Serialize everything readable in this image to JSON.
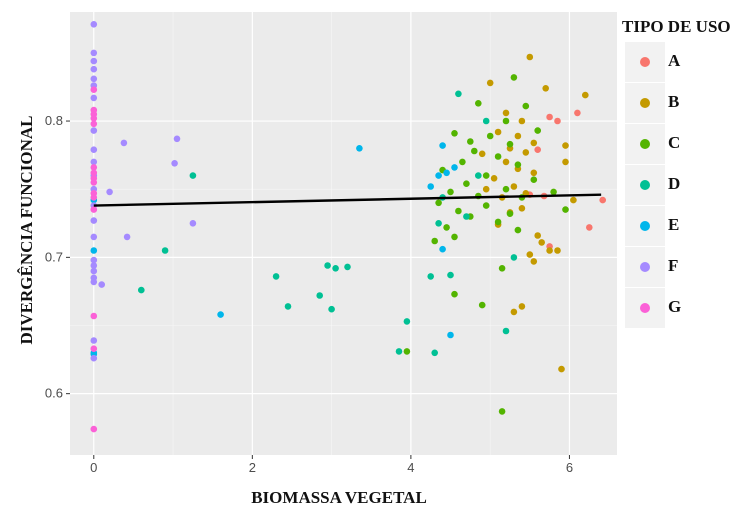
{
  "chart_data": {
    "type": "scatter",
    "xlabel": "BIOMASSA VEGETAL",
    "ylabel": "DIVERGÊNCIA FUNCIONAL",
    "xlim": [
      -0.3,
      6.6
    ],
    "ylim": [
      0.555,
      0.88
    ],
    "x_ticks": [
      0,
      2,
      4,
      6
    ],
    "x_tick_labels": [
      "0",
      "2",
      "4",
      "6"
    ],
    "y_ticks": [
      0.6,
      0.7,
      0.8
    ],
    "y_tick_labels": [
      "0.6",
      "0.7",
      "0.8"
    ],
    "grid": true,
    "background": "#ebebeb",
    "legend": {
      "title": "TIPO DE USO",
      "position": "right",
      "entries": [
        {
          "label": "A",
          "color": "#f8766d"
        },
        {
          "label": "B",
          "color": "#c49a00"
        },
        {
          "label": "C",
          "color": "#53b400"
        },
        {
          "label": "D",
          "color": "#00c094"
        },
        {
          "label": "E",
          "color": "#00b6eb"
        },
        {
          "label": "F",
          "color": "#a58aff"
        },
        {
          "label": "G",
          "color": "#fb61d7"
        }
      ]
    },
    "trend_line": {
      "x": [
        0,
        6.4
      ],
      "y": [
        0.738,
        0.746
      ],
      "color": "#000000"
    },
    "series": [
      {
        "name": "A",
        "color": "#f8766d",
        "points": [
          [
            5.75,
            0.803
          ],
          [
            5.85,
            0.8
          ],
          [
            6.1,
            0.806
          ],
          [
            5.6,
            0.779
          ],
          [
            5.5,
            0.746
          ],
          [
            5.68,
            0.745
          ],
          [
            6.25,
            0.722
          ],
          [
            6.42,
            0.742
          ],
          [
            5.75,
            0.708
          ]
        ]
      },
      {
        "name": "B",
        "color": "#c49a00",
        "points": [
          [
            5.5,
            0.847
          ],
          [
            5.0,
            0.828
          ],
          [
            5.7,
            0.824
          ],
          [
            6.2,
            0.819
          ],
          [
            5.2,
            0.806
          ],
          [
            5.4,
            0.8
          ],
          [
            5.1,
            0.792
          ],
          [
            5.35,
            0.789
          ],
          [
            5.55,
            0.784
          ],
          [
            5.25,
            0.78
          ],
          [
            5.95,
            0.782
          ],
          [
            5.45,
            0.777
          ],
          [
            5.2,
            0.77
          ],
          [
            4.9,
            0.776
          ],
          [
            5.35,
            0.765
          ],
          [
            5.55,
            0.762
          ],
          [
            5.05,
            0.758
          ],
          [
            5.95,
            0.77
          ],
          [
            5.3,
            0.752
          ],
          [
            5.45,
            0.747
          ],
          [
            5.15,
            0.744
          ],
          [
            4.95,
            0.75
          ],
          [
            5.4,
            0.736
          ],
          [
            5.25,
            0.733
          ],
          [
            5.1,
            0.724
          ],
          [
            6.05,
            0.742
          ],
          [
            5.6,
            0.716
          ],
          [
            5.65,
            0.711
          ],
          [
            5.5,
            0.702
          ],
          [
            5.55,
            0.697
          ],
          [
            5.75,
            0.705
          ],
          [
            5.85,
            0.705
          ],
          [
            5.3,
            0.66
          ],
          [
            5.4,
            0.664
          ],
          [
            5.9,
            0.618
          ]
        ]
      },
      {
        "name": "C",
        "color": "#53b400",
        "points": [
          [
            5.3,
            0.832
          ],
          [
            4.85,
            0.813
          ],
          [
            5.45,
            0.811
          ],
          [
            5.2,
            0.8
          ],
          [
            4.55,
            0.791
          ],
          [
            5.0,
            0.789
          ],
          [
            5.6,
            0.793
          ],
          [
            4.75,
            0.785
          ],
          [
            5.25,
            0.783
          ],
          [
            4.8,
            0.778
          ],
          [
            5.1,
            0.774
          ],
          [
            4.65,
            0.77
          ],
          [
            5.35,
            0.768
          ],
          [
            4.4,
            0.764
          ],
          [
            4.95,
            0.76
          ],
          [
            5.55,
            0.757
          ],
          [
            4.7,
            0.754
          ],
          [
            5.2,
            0.75
          ],
          [
            4.5,
            0.748
          ],
          [
            4.85,
            0.745
          ],
          [
            5.4,
            0.744
          ],
          [
            4.35,
            0.74
          ],
          [
            4.95,
            0.738
          ],
          [
            4.6,
            0.734
          ],
          [
            5.25,
            0.732
          ],
          [
            4.75,
            0.73
          ],
          [
            5.1,
            0.726
          ],
          [
            4.45,
            0.722
          ],
          [
            5.35,
            0.72
          ],
          [
            4.55,
            0.715
          ],
          [
            4.3,
            0.712
          ],
          [
            5.8,
            0.748
          ],
          [
            5.95,
            0.735
          ],
          [
            5.15,
            0.692
          ],
          [
            4.55,
            0.673
          ],
          [
            4.9,
            0.665
          ],
          [
            3.95,
            0.631
          ],
          [
            5.15,
            0.587
          ]
        ]
      },
      {
        "name": "D",
        "color": "#00c094",
        "points": [
          [
            1.25,
            0.76
          ],
          [
            0.9,
            0.705
          ],
          [
            0.6,
            0.676
          ],
          [
            2.3,
            0.686
          ],
          [
            2.45,
            0.664
          ],
          [
            2.85,
            0.672
          ],
          [
            2.95,
            0.694
          ],
          [
            3.05,
            0.692
          ],
          [
            3.2,
            0.693
          ],
          [
            3.0,
            0.662
          ],
          [
            3.85,
            0.631
          ],
          [
            3.95,
            0.653
          ],
          [
            4.3,
            0.63
          ],
          [
            4.25,
            0.686
          ],
          [
            4.5,
            0.687
          ],
          [
            4.35,
            0.725
          ],
          [
            4.4,
            0.744
          ],
          [
            4.6,
            0.82
          ],
          [
            4.7,
            0.73
          ],
          [
            5.2,
            0.646
          ],
          [
            5.3,
            0.7
          ],
          [
            4.85,
            0.76
          ],
          [
            4.95,
            0.8
          ]
        ]
      },
      {
        "name": "E",
        "color": "#00b6eb",
        "points": [
          [
            3.35,
            0.78
          ],
          [
            1.6,
            0.658
          ],
          [
            4.4,
            0.706
          ],
          [
            4.35,
            0.76
          ],
          [
            4.45,
            0.762
          ],
          [
            4.25,
            0.752
          ],
          [
            4.55,
            0.766
          ],
          [
            4.4,
            0.782
          ],
          [
            4.5,
            0.643
          ],
          [
            0.0,
            0.742
          ],
          [
            0.0,
            0.705
          ],
          [
            0.0,
            0.63
          ],
          [
            0.0,
            0.629
          ]
        ]
      },
      {
        "name": "F",
        "color": "#a58aff",
        "points": [
          [
            0.0,
            0.871
          ],
          [
            0.0,
            0.85
          ],
          [
            0.0,
            0.844
          ],
          [
            0.0,
            0.838
          ],
          [
            0.0,
            0.831
          ],
          [
            0.0,
            0.826
          ],
          [
            0.0,
            0.817
          ],
          [
            0.0,
            0.793
          ],
          [
            0.0,
            0.779
          ],
          [
            0.0,
            0.77
          ],
          [
            0.0,
            0.76
          ],
          [
            0.0,
            0.75
          ],
          [
            0.0,
            0.738
          ],
          [
            0.0,
            0.727
          ],
          [
            0.0,
            0.715
          ],
          [
            0.0,
            0.698
          ],
          [
            0.0,
            0.694
          ],
          [
            0.0,
            0.69
          ],
          [
            0.0,
            0.685
          ],
          [
            0.0,
            0.682
          ],
          [
            0.0,
            0.639
          ],
          [
            0.0,
            0.626
          ],
          [
            0.1,
            0.68
          ],
          [
            0.2,
            0.748
          ],
          [
            0.38,
            0.784
          ],
          [
            0.42,
            0.715
          ],
          [
            1.05,
            0.787
          ],
          [
            1.02,
            0.769
          ],
          [
            1.25,
            0.725
          ]
        ]
      },
      {
        "name": "G",
        "color": "#fb61d7",
        "points": [
          [
            0.0,
            0.823
          ],
          [
            0.0,
            0.808
          ],
          [
            0.0,
            0.805
          ],
          [
            0.0,
            0.802
          ],
          [
            0.0,
            0.798
          ],
          [
            0.0,
            0.766
          ],
          [
            0.0,
            0.762
          ],
          [
            0.0,
            0.758
          ],
          [
            0.0,
            0.755
          ],
          [
            0.0,
            0.747
          ],
          [
            0.0,
            0.744
          ],
          [
            0.0,
            0.735
          ],
          [
            0.0,
            0.657
          ],
          [
            0.0,
            0.633
          ],
          [
            0.0,
            0.574
          ]
        ]
      }
    ]
  }
}
